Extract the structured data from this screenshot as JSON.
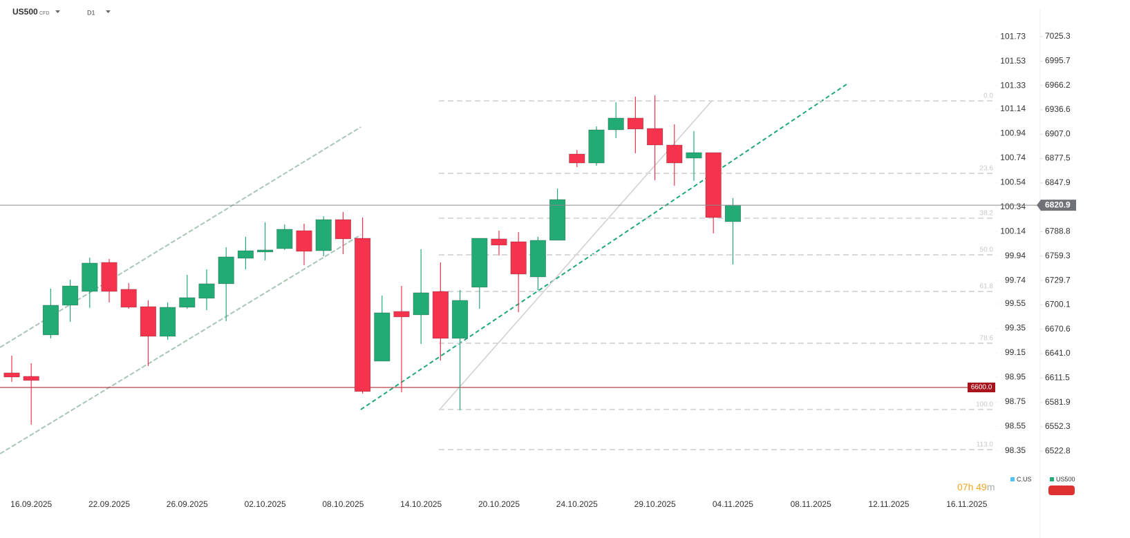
{
  "header": {
    "symbol": "US500",
    "instrument": "CFD",
    "timeframe": "D1"
  },
  "countdown": {
    "hours": "07h",
    "minutes": "49",
    "unit": "m"
  },
  "chart_data": {
    "type": "candlestick",
    "categories": [
      null,
      "16.09.2025",
      null,
      null,
      null,
      "22.09.2025",
      null,
      null,
      null,
      "26.09.2025",
      null,
      null,
      null,
      "02.10.2025",
      null,
      null,
      null,
      "08.10.2025",
      null,
      null,
      null,
      "14.10.2025",
      null,
      null,
      null,
      "20.10.2025",
      null,
      null,
      null,
      "24.10.2025",
      null,
      null,
      null,
      "29.10.2025",
      null,
      null,
      null,
      "04.11.2025",
      null,
      null,
      null,
      "08.11.2025",
      null,
      null,
      null,
      "12.11.2025",
      null,
      null,
      null,
      "16.11.2025"
    ],
    "series": [
      {
        "name": "US500",
        "up_color": "#22ab74",
        "down_color": "#f5334d",
        "open": [
          6617.7,
          6613.5,
          6663.7,
          6699.7,
          6716.4,
          6751.6,
          6719.0,
          6698.0,
          6662.0,
          6697.2,
          6708.1,
          6725.7,
          6756.6,
          6764.2,
          6768.3,
          6790.1,
          6765.8,
          6803.5,
          6780.9,
          6631.9,
          6692.2,
          6688.0,
          6716.4,
          6659.5,
          6721.5,
          6780.1,
          6776.7,
          6734.0,
          6778.4,
          6883.0,
          6872.1,
          6912.3,
          6926.6,
          6914.0,
          6893.9,
          6878.0,
          6884.7,
          6801.0,
          null,
          null,
          null,
          null,
          null,
          null,
          null,
          null,
          null,
          null,
          null,
          null
        ],
        "high": [
          6638.6,
          6629.4,
          6719.8,
          6730.7,
          6757.5,
          6755.8,
          6726.5,
          6705.6,
          6703.1,
          6736.5,
          6743.2,
          6770.0,
          6782.6,
          6800.2,
          6797.6,
          6798.5,
          6807.7,
          6812.7,
          6806.0,
          6711.4,
          6723.1,
          6767.5,
          6751.6,
          6718.1,
          6780.9,
          6790.1,
          6788.4,
          6782.6,
          6841.2,
          6888.0,
          6916.5,
          6945.8,
          6952.5,
          6954.2,
          6919.0,
          6910.7,
          6884.7,
          6829.5,
          null,
          null,
          null,
          null,
          null,
          null,
          null,
          null,
          null,
          null,
          null,
          null
        ],
        "low": [
          6606.8,
          6554.9,
          6659.5,
          6679.6,
          6696.4,
          6703.1,
          6695.5,
          6626.0,
          6657.8,
          6695.5,
          6693.8,
          6680.4,
          6743.2,
          6754.1,
          6766.7,
          6748.3,
          6759.1,
          6761.6,
          6592.6,
          6631.9,
          6594.2,
          6652.8,
          6632.7,
          6572.5,
          6695.5,
          6760.0,
          6691.3,
          6718.1,
          6778.4,
          6867.1,
          6868.8,
          6902.3,
          6883.9,
          6851.2,
          6844.5,
          6850.4,
          6786.8,
          6749.1,
          null,
          null,
          null,
          null,
          null,
          null,
          null,
          null,
          null,
          null,
          null,
          null
        ],
        "close": [
          6612.6,
          6608.5,
          6699.7,
          6723.1,
          6750.8,
          6716.4,
          6697.2,
          6662.0,
          6697.2,
          6708.9,
          6725.7,
          6758.3,
          6765.8,
          6766.7,
          6791.8,
          6765.0,
          6803.5,
          6780.1,
          6595.1,
          6690.5,
          6685.5,
          6714.8,
          6659.5,
          6705.6,
          6780.9,
          6772.5,
          6737.4,
          6778.4,
          6827.8,
          6872.1,
          6912.3,
          6926.6,
          6913.2,
          6893.9,
          6872.1,
          6884.7,
          6806.0,
          6820.9,
          null,
          null,
          null,
          null,
          null,
          null,
          null,
          null,
          null,
          null,
          null,
          null
        ]
      }
    ],
    "legend": [
      {
        "name": "C.US",
        "color": "#4fc3f7"
      },
      {
        "name": "US500",
        "color": "#22ab74"
      }
    ],
    "ylim": [
      6471.1,
      7069.7
    ],
    "yticks": [
      7025.3,
      6995.7,
      6966.2,
      6936.6,
      {
        "value": 6907,
        "label": "6907.0"
      },
      6877.5,
      6847.9,
      6788.8,
      6759.3,
      6729.7,
      6700.1,
      6670.6,
      {
        "value": 6641,
        "label": "6641.0"
      },
      6611.5,
      6581.9,
      6552.3,
      6522.8
    ],
    "y2lim": [
      98.0,
      102.03
    ],
    "y2ticks": [
      101.73,
      101.53,
      101.33,
      101.14,
      100.94,
      100.74,
      100.54,
      100.34,
      100.14,
      99.94,
      99.74,
      99.55,
      99.35,
      99.15,
      98.95,
      98.75,
      98.55,
      98.35
    ],
    "current_price": 6820.9,
    "price_line": {
      "value": 6600,
      "label": "6600.0",
      "color": "#a8131c"
    },
    "fibonacci": [
      {
        "label": "0.0",
        "price": 6947.4
      },
      {
        "label": "23.6",
        "price": 6859.6
      },
      {
        "label": "38.2",
        "price": 6805.2
      },
      {
        "label": "50.0",
        "price": 6760.8
      },
      {
        "label": "61.8",
        "price": 6716.4
      },
      {
        "label": "78.6",
        "price": 6653.6
      },
      {
        "label": "100.0",
        "price": 6573.3
      },
      {
        "label": "113.0",
        "price": 6524.7
      }
    ]
  }
}
